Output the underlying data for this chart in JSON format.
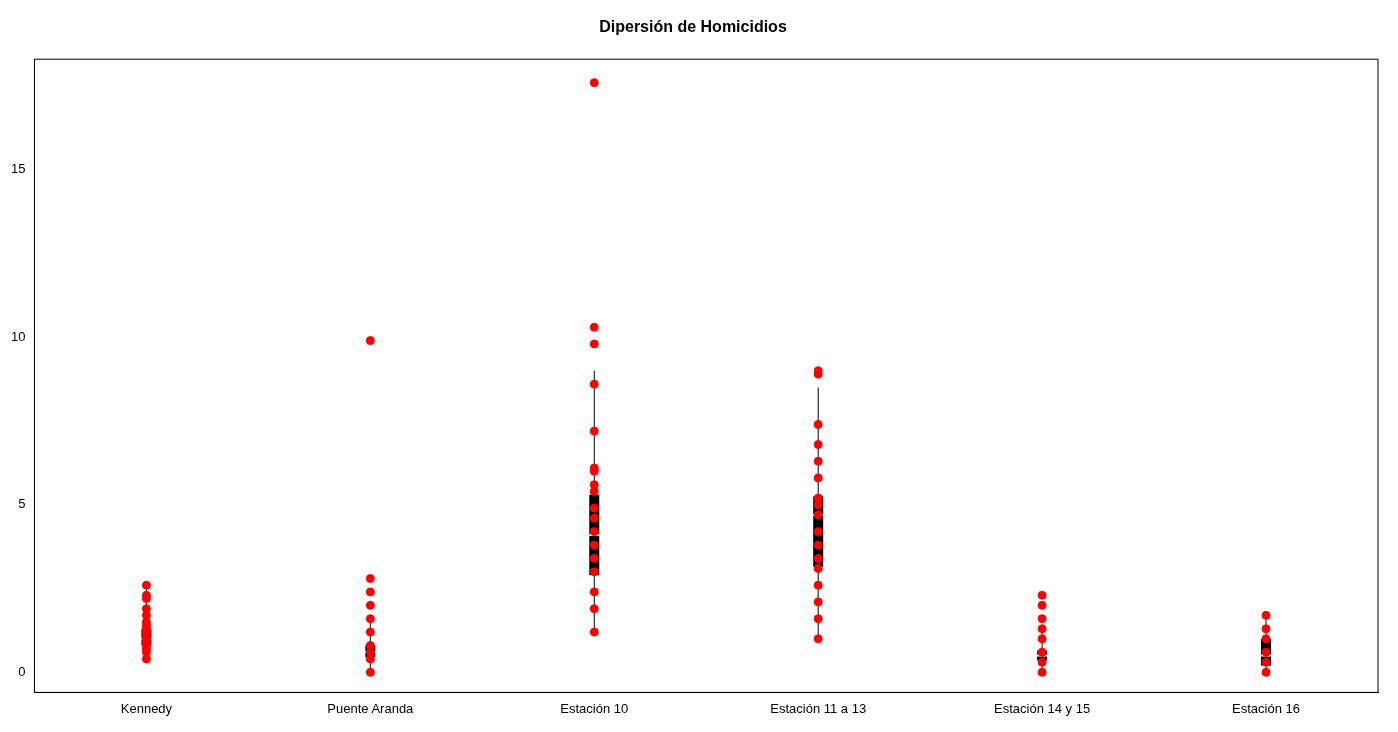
{
  "chart_data": {
    "type": "box",
    "title": "Dipersión de Homicidios",
    "categories": [
      "Kennedy",
      "Puente Aranda",
      "Estación 10",
      "Estación 11 a 13",
      "Estación 14 y 15",
      "Estación 16"
    ],
    "boxes": [
      {
        "low": 0.4,
        "q1": 0.8,
        "median": 1.0,
        "q3": 1.3,
        "high": 2.6
      },
      {
        "low": 0,
        "q1": 0.45,
        "median": 0.6,
        "q3": 0.8,
        "high": 1.6
      },
      {
        "low": 1.2,
        "q1": 2.9,
        "median": 4.1,
        "q3": 5.3,
        "high": 9.0
      },
      {
        "low": 1.0,
        "q1": 3.15,
        "median": 4.7,
        "q3": 5.25,
        "high": 8.5
      },
      {
        "low": 0,
        "q1": 0.35,
        "median": 0.5,
        "q3": 0.65,
        "high": 1.3
      },
      {
        "low": 0,
        "q1": 0.2,
        "median": 0.5,
        "q3": 1.0,
        "high": 1.7
      }
    ],
    "color": "#000000",
    "series": [
      {
        "type": "scatter",
        "color": "#ff0000",
        "x": [
          "Kennedy",
          "Kennedy",
          "Kennedy",
          "Kennedy",
          "Kennedy",
          "Kennedy",
          "Kennedy",
          "Kennedy",
          "Kennedy",
          "Kennedy",
          "Kennedy",
          "Kennedy",
          "Kennedy",
          "Kennedy",
          "Kennedy",
          "Kennedy",
          "Puente Aranda",
          "Puente Aranda",
          "Puente Aranda",
          "Puente Aranda",
          "Puente Aranda",
          "Puente Aranda",
          "Puente Aranda",
          "Puente Aranda",
          "Puente Aranda",
          "Puente Aranda",
          "Estación 10",
          "Estación 10",
          "Estación 10",
          "Estación 10",
          "Estación 10",
          "Estación 10",
          "Estación 10",
          "Estación 10",
          "Estación 10",
          "Estación 10",
          "Estación 10",
          "Estación 10",
          "Estación 10",
          "Estación 10",
          "Estación 10",
          "Estación 10",
          "Estación 10",
          "Estación 10",
          "Estación 11 a 13",
          "Estación 11 a 13",
          "Estación 11 a 13",
          "Estación 11 a 13",
          "Estación 11 a 13",
          "Estación 11 a 13",
          "Estación 11 a 13",
          "Estación 11 a 13",
          "Estación 11 a 13",
          "Estación 11 a 13",
          "Estación 11 a 13",
          "Estación 11 a 13",
          "Estación 11 a 13",
          "Estación 11 a 13",
          "Estación 11 a 13",
          "Estación 11 a 13",
          "Estación 11 a 13",
          "Estación 14 y 15",
          "Estación 14 y 15",
          "Estación 14 y 15",
          "Estación 14 y 15",
          "Estación 14 y 15",
          "Estación 14 y 15",
          "Estación 14 y 15",
          "Estación 14 y 15",
          "Estación 16",
          "Estación 16",
          "Estación 16",
          "Estación 16",
          "Estación 16",
          "Estación 16"
        ],
        "values": [
          0.4,
          0.6,
          0.7,
          0.8,
          0.9,
          1.0,
          1.1,
          1.2,
          1.3,
          1.4,
          1.5,
          1.7,
          1.9,
          2.2,
          2.3,
          2.6,
          0,
          0.4,
          0.6,
          0.8,
          1.2,
          1.6,
          2.0,
          2.4,
          2.8,
          9.9,
          1.2,
          1.9,
          2.4,
          3.0,
          3.4,
          3.8,
          4.2,
          4.6,
          4.9,
          5.4,
          5.6,
          6.0,
          6.1,
          7.2,
          8.6,
          9.8,
          10.3,
          17.6,
          1.0,
          1.6,
          2.1,
          2.6,
          3.1,
          3.4,
          3.8,
          4.2,
          4.7,
          5.0,
          5.2,
          5.8,
          6.3,
          6.8,
          7.4,
          8.9,
          9.0,
          0,
          0.3,
          0.6,
          1.0,
          1.3,
          1.6,
          2.0,
          2.3,
          0,
          0.3,
          0.6,
          1.0,
          1.3,
          1.7
        ]
      }
    ],
    "ylim": [
      -0.6,
      18.3
    ],
    "yticks": [
      0,
      5,
      10,
      15
    ],
    "grid": false,
    "legend": false,
    "marker": "circle"
  }
}
